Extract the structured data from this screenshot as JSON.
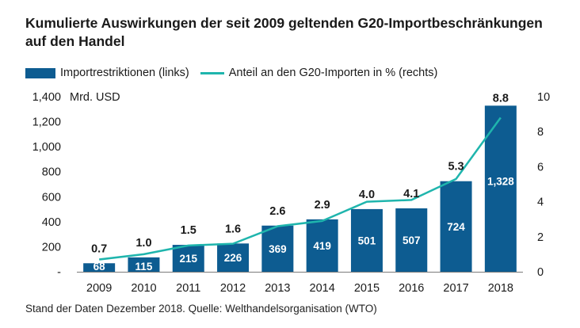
{
  "title_line1": "Kumulierte Auswirkungen der seit 2009 geltenden G20-Importbeschränkungen",
  "title_line2": "auf den Handel",
  "legend": {
    "bar": "Importrestriktionen (links)",
    "line": "Anteil an den G20-Importen in % (rechts)"
  },
  "footer": "Stand der Daten Dezember 2018. Quelle: Welthandelsorganisation (WTO)",
  "colors": {
    "bar": "#0d5c91",
    "line": "#1fb5ad"
  },
  "chart_data": {
    "type": "bar",
    "categories": [
      "2009",
      "2010",
      "2011",
      "2012",
      "2013",
      "2014",
      "2015",
      "2016",
      "2017",
      "2018"
    ],
    "series": [
      {
        "name": "Importrestriktionen (links)",
        "type": "bar",
        "axis": "left",
        "values": [
          68,
          115,
          215,
          226,
          369,
          419,
          501,
          507,
          724,
          1328
        ],
        "labels": [
          "68",
          "115",
          "215",
          "226",
          "369",
          "419",
          "501",
          "507",
          "724",
          "1,328"
        ]
      },
      {
        "name": "Anteil an den G20-Importen in % (rechts)",
        "type": "line",
        "axis": "right",
        "values": [
          0.7,
          1.0,
          1.5,
          1.6,
          2.6,
          2.9,
          4.0,
          4.1,
          5.3,
          8.8
        ],
        "labels": [
          "0.7",
          "1.0",
          "1.5",
          "1.6",
          "2.6",
          "2.9",
          "4.0",
          "4.1",
          "5.3",
          "8.8"
        ]
      }
    ],
    "left_axis": {
      "unit_label": "Mrd. USD",
      "ylim": [
        0,
        1400
      ],
      "ticks": [
        "-",
        "200",
        "400",
        "600",
        "800",
        "1,000",
        "1,200",
        "1,400"
      ]
    },
    "right_axis": {
      "ylim": [
        0,
        10
      ],
      "ticks": [
        "0",
        "2",
        "4",
        "6",
        "8",
        "10"
      ]
    },
    "grid": false,
    "legend_position": "top-left"
  }
}
